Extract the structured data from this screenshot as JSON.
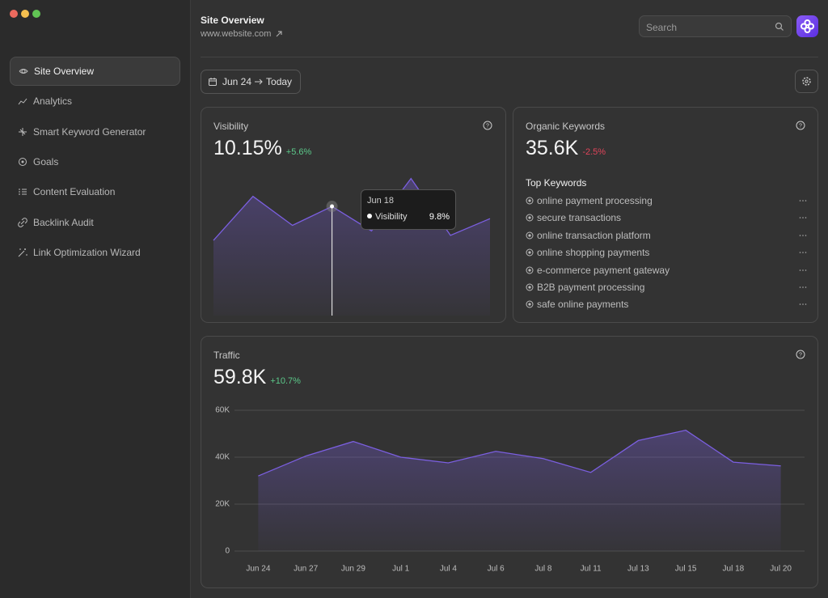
{
  "header": {
    "title": "Site Overview",
    "url": "www.website.com",
    "search_placeholder": "Search"
  },
  "sidebar": {
    "items": [
      "Site Overview",
      "Analytics",
      "Smart Keyword Generator",
      "Goals",
      "Content Evaluation",
      "Backlink Audit",
      "Link Optimization Wizard"
    ]
  },
  "date_range": {
    "from": "Jun 24",
    "to": "Today"
  },
  "keywords": {
    "title": "Organic Keywords",
    "kpi": "35.6K",
    "change": "-2.5%",
    "list_title": "Top Keywords",
    "items": [
      "online payment processing",
      "secure transactions",
      "online transaction platform",
      "online shopping payments",
      "e-commerce payment gateway",
      "B2B payment processing",
      "safe online payments"
    ]
  },
  "chart_data": [
    {
      "type": "area",
      "title": "Visibility",
      "kpi": "10.15%",
      "change": "+5.6%",
      "color": "#7b5fe0",
      "values": [
        6.75,
        10.7,
        8.1,
        9.8,
        7.6,
        12.3,
        7.2,
        8.7
      ],
      "ylim": [
        0,
        13
      ],
      "tooltip": {
        "index": 3,
        "label": "Jun 18",
        "series": "Visibility",
        "value_label": "9.8%"
      }
    },
    {
      "type": "area",
      "title": "Traffic",
      "kpi": "59.8K",
      "change": "+10.7%",
      "color": "#7b5fe0",
      "grid": true,
      "categories": [
        "Jun 24",
        "Jun 27",
        "Jun 29",
        "Jul 1",
        "Jul 4",
        "Jul 6",
        "Jul 8",
        "Jul 11",
        "Jul 13",
        "Jul 15",
        "Jul 18",
        "Jul 20"
      ],
      "values": [
        32000,
        40500,
        46700,
        40000,
        37600,
        42500,
        39400,
        33500,
        47100,
        51500,
        37900,
        36300
      ],
      "ylim": [
        0,
        60000
      ],
      "yticks": [
        0,
        {
          "value": 20000,
          "label": "20K"
        },
        {
          "value": 40000,
          "label": "40K"
        },
        {
          "value": 60000,
          "label": "60K"
        }
      ]
    }
  ]
}
